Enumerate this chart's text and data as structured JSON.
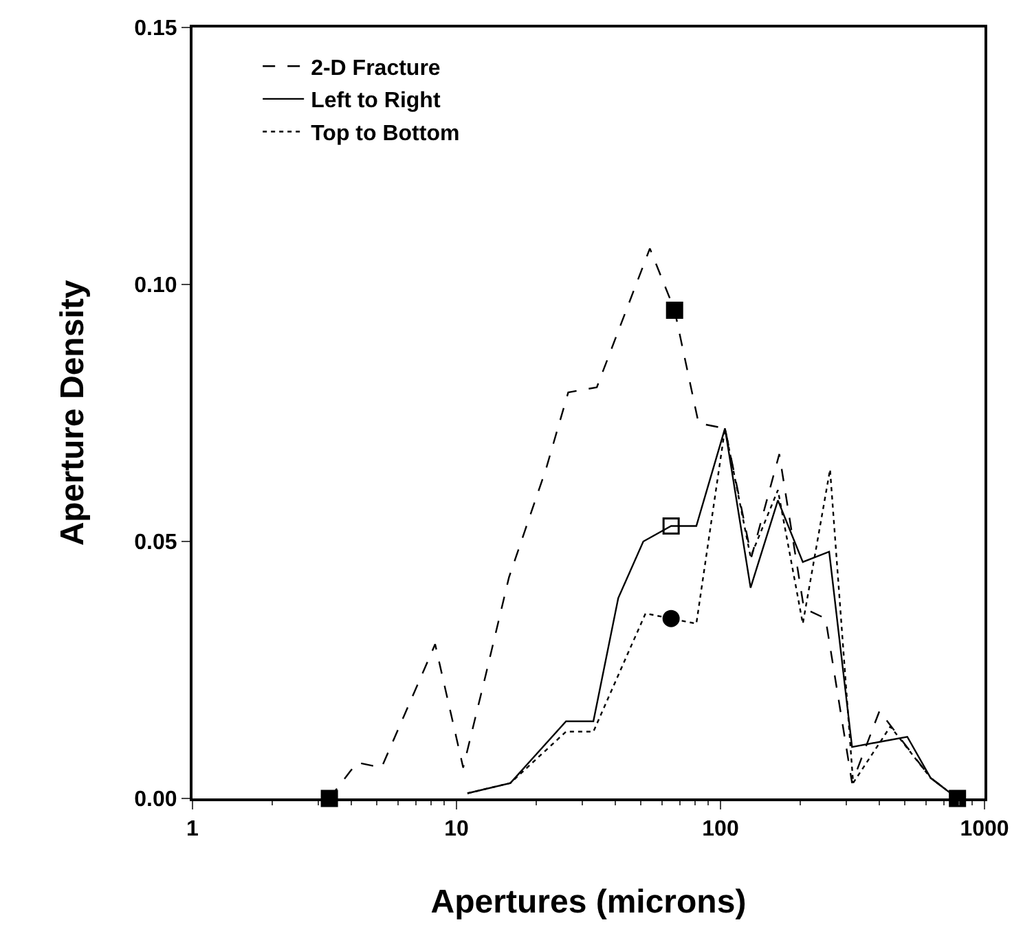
{
  "chart_data": {
    "type": "line",
    "xlabel": "Apertures (microns)",
    "ylabel": "Aperture Density",
    "log": "x",
    "xlim": [
      1,
      1000
    ],
    "xticks": [
      1,
      10,
      100,
      1000
    ],
    "ylim": [
      0,
      0.15
    ],
    "yticks": [
      {
        "value": 0,
        "label": "0.00"
      },
      {
        "value": 0.05,
        "label": "0.05"
      },
      {
        "value": 0.1,
        "label": "0.10"
      },
      {
        "value": 0.15,
        "label": "0.15"
      }
    ],
    "grid": false,
    "legend": "top left",
    "series": [
      {
        "name": "2-D Fracture",
        "color": "#000000",
        "line_style": "dashed",
        "marker": "none",
        "x": [
          3.3,
          4.2,
          5.2,
          8.3,
          10.6,
          12.9,
          15.8,
          21.8,
          26.5,
          34,
          54,
          67,
          82.6,
          104,
          131,
          167,
          207,
          250,
          315,
          400,
          625,
          790
        ],
        "values": [
          0,
          0.007,
          0.006,
          0.03,
          0.006,
          0.024,
          0.043,
          0.064,
          0.079,
          0.08,
          0.107,
          0.095,
          0.073,
          0.072,
          0.047,
          0.067,
          0.037,
          0.035,
          0.003,
          0.017,
          0.004,
          0
        ]
      },
      {
        "name": "Left to Right",
        "color": "#000000",
        "line_style": "solid",
        "marker": "none",
        "x": [
          11,
          16,
          26,
          33,
          41,
          51,
          65,
          81,
          104,
          130,
          165,
          205,
          258,
          315,
          400,
          510,
          625,
          790
        ],
        "values": [
          0.001,
          0.003,
          0.015,
          0.015,
          0.039,
          0.05,
          0.053,
          0.053,
          0.072,
          0.041,
          0.058,
          0.046,
          0.048,
          0.01,
          0.011,
          0.012,
          0.004,
          0
        ]
      },
      {
        "name": "Top to Bottom",
        "color": "#000000",
        "line_style": "dotted",
        "marker": "none",
        "x": [
          11,
          16,
          26,
          33,
          52,
          65,
          81,
          104,
          130,
          165,
          205,
          260,
          318,
          440,
          625,
          790
        ],
        "values": [
          0.001,
          0.003,
          0.013,
          0.013,
          0.036,
          0.035,
          0.034,
          0.072,
          0.047,
          0.06,
          0.034,
          0.064,
          0.003,
          0.014,
          0.004,
          0
        ]
      },
      {
        "type": "scatter",
        "color": "#000000",
        "marker": "square",
        "x": [
          3.3,
          67,
          790
        ],
        "values": [
          0,
          0.095,
          0
        ]
      },
      {
        "type": "scatter",
        "color": "#000000",
        "marker": "square-open",
        "x": [
          65
        ],
        "values": [
          0.053
        ]
      },
      {
        "type": "scatter",
        "color": "#000000",
        "marker": "circle",
        "x": [
          65
        ],
        "values": [
          0.035
        ]
      }
    ]
  }
}
